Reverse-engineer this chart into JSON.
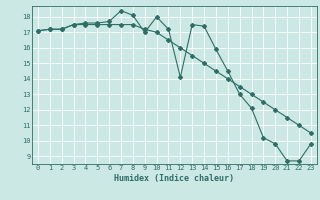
{
  "xlabel": "Humidex (Indice chaleur)",
  "ylabel": "",
  "background_color": "#cce8e4",
  "line_color": "#2d6e65",
  "grid_color": "#ffffff",
  "xlim": [
    -0.5,
    23.5
  ],
  "ylim": [
    8.5,
    18.7
  ],
  "yticks": [
    9,
    10,
    11,
    12,
    13,
    14,
    15,
    16,
    17,
    18
  ],
  "xticks": [
    0,
    1,
    2,
    3,
    4,
    5,
    6,
    7,
    8,
    9,
    10,
    11,
    12,
    13,
    14,
    15,
    16,
    17,
    18,
    19,
    20,
    21,
    22,
    23
  ],
  "series1_x": [
    0,
    1,
    2,
    3,
    4,
    5,
    6,
    7,
    8,
    9,
    10,
    11,
    12,
    13,
    14,
    15,
    16,
    17,
    18,
    19,
    20,
    21,
    22,
    23
  ],
  "series1_y": [
    17.1,
    17.2,
    17.2,
    17.5,
    17.6,
    17.6,
    17.7,
    18.4,
    18.1,
    17.0,
    18.0,
    17.2,
    14.1,
    17.5,
    17.4,
    15.9,
    14.5,
    13.0,
    12.1,
    10.2,
    9.8,
    8.7,
    8.7,
    9.8
  ],
  "series2_x": [
    0,
    1,
    2,
    3,
    4,
    5,
    6,
    7,
    8,
    9,
    10,
    11,
    12,
    13,
    14,
    15,
    16,
    17,
    18,
    19,
    20,
    21,
    22,
    23
  ],
  "series2_y": [
    17.1,
    17.2,
    17.2,
    17.5,
    17.5,
    17.5,
    17.5,
    17.5,
    17.5,
    17.2,
    17.0,
    16.5,
    16.0,
    15.5,
    15.0,
    14.5,
    14.0,
    13.5,
    13.0,
    12.5,
    12.0,
    11.5,
    11.0,
    10.5
  ],
  "title_fontsize": 6.5,
  "tick_fontsize": 5,
  "xlabel_fontsize": 6,
  "marker": "D",
  "markersize": 2.0,
  "linewidth": 0.8
}
